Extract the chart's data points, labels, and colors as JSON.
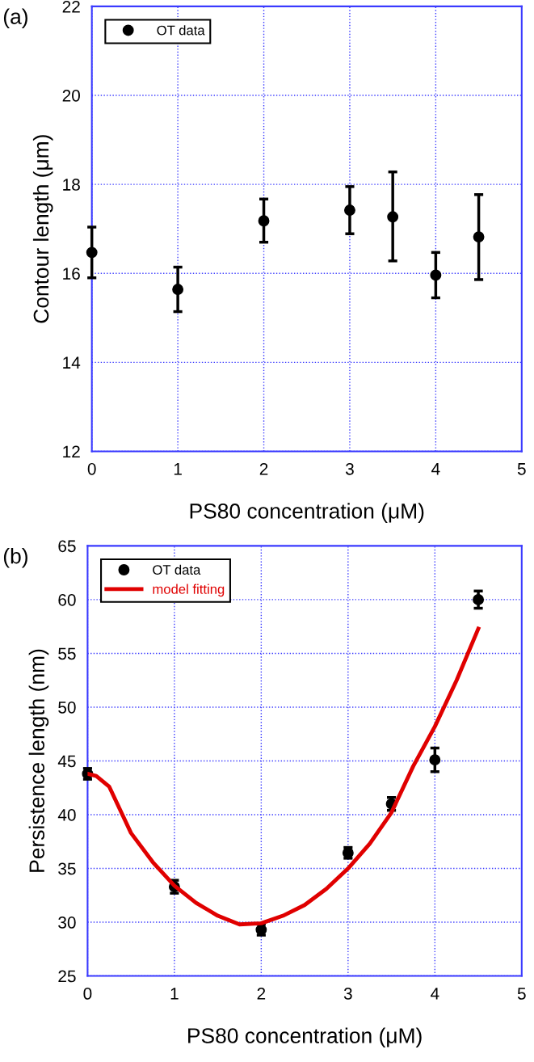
{
  "chart_data": [
    {
      "type": "scatter",
      "annotations": [
        "(a)"
      ],
      "xlabel": "PS80 concentration (μM)",
      "ylabel": "Contour length (μm)",
      "xlim": [
        0,
        5
      ],
      "xticks": [
        0,
        1,
        2,
        3,
        4,
        5
      ],
      "ylim": [
        12,
        22
      ],
      "yticks": [
        12,
        14,
        16,
        18,
        20,
        22
      ],
      "grid": true,
      "legend": "top left",
      "marker": "circle",
      "x": [
        0,
        1,
        2,
        3,
        3.5,
        4,
        4.5
      ],
      "series": [
        {
          "name": "OT data",
          "color": "#000000",
          "values": [
            16.47,
            15.64,
            17.18,
            17.42,
            17.27,
            15.96,
            16.82
          ],
          "errors": [
            [
              15.9,
              17.04
            ],
            [
              15.14,
              16.14
            ],
            [
              16.7,
              17.67
            ],
            [
              16.89,
              17.95
            ],
            [
              16.28,
              18.28
            ],
            [
              15.45,
              16.47
            ],
            [
              15.86,
              17.77
            ]
          ]
        }
      ]
    },
    {
      "type": "scatter",
      "annotations": [
        "(b)"
      ],
      "xlabel": "PS80 concentration (μM)",
      "ylabel": "Persistence length (nm)",
      "xlim": [
        0,
        5
      ],
      "xticks": [
        0,
        1,
        2,
        3,
        4,
        5
      ],
      "ylim": [
        25,
        65
      ],
      "yticks": [
        25,
        30,
        35,
        40,
        45,
        50,
        55,
        60,
        65
      ],
      "grid": true,
      "legend": "top left",
      "marker": "circle",
      "x": [
        0,
        1,
        2,
        3,
        3.5,
        4,
        4.5
      ],
      "series": [
        {
          "name": "OT data",
          "color": "#000000",
          "values": [
            43.8,
            33.3,
            29.3,
            36.45,
            41.0,
            45.1,
            60.0
          ],
          "errors": [
            0.5,
            0.6,
            0.5,
            0.5,
            0.6,
            1.1,
            0.8
          ]
        },
        {
          "name": "model fitting",
          "type": "line",
          "color": "#e00000",
          "marker": "none",
          "x": [
            0,
            0.1,
            0.25,
            0.5,
            0.75,
            1.0,
            1.25,
            1.5,
            1.75,
            2.0,
            2.25,
            2.5,
            2.75,
            3.0,
            3.25,
            3.5,
            3.75,
            4.0,
            4.25,
            4.5
          ],
          "values": [
            43.8,
            43.6,
            42.6,
            38.3,
            35.6,
            33.4,
            31.8,
            30.6,
            29.8,
            29.9,
            30.6,
            31.6,
            33.1,
            35.0,
            37.3,
            40.2,
            44.5,
            48.2,
            52.5,
            57.3
          ]
        }
      ]
    }
  ]
}
